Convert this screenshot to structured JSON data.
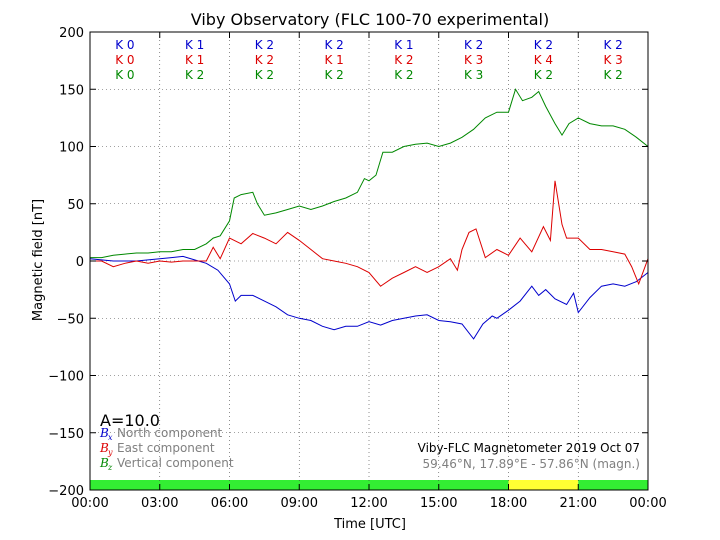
{
  "chart_data": {
    "type": "line",
    "title": "Viby Observatory (FLC 100-70 experimental)",
    "xlabel": "Time [UTC]",
    "ylabel": "Magnetic field [nT]",
    "ylim": [
      -200,
      200
    ],
    "xlim_hours": [
      0,
      24
    ],
    "x_tick_labels": [
      "00:00",
      "03:00",
      "06:00",
      "09:00",
      "12:00",
      "15:00",
      "18:00",
      "21:00",
      "00:00"
    ],
    "y_ticks": [
      -200,
      -150,
      -100,
      -50,
      0,
      50,
      100,
      150,
      200
    ],
    "y_tick_labels": [
      "−200",
      "−150",
      "−100",
      "−50",
      "0",
      "50",
      "100",
      "150",
      "200"
    ],
    "grid": true,
    "k_index_rows": [
      {
        "color": "#0000cc",
        "labels": [
          "K 0",
          "K 1",
          "K 2",
          "K 2",
          "K 1",
          "K 2",
          "K 2",
          "K 2"
        ]
      },
      {
        "color": "#dd0000",
        "labels": [
          "K 0",
          "K 1",
          "K 2",
          "K 1",
          "K 2",
          "K 3",
          "K 4",
          "K 3"
        ]
      },
      {
        "color": "#008800",
        "labels": [
          "K 0",
          "K 2",
          "K 2",
          "K 2",
          "K 2",
          "K 3",
          "K 2",
          "K 2"
        ]
      }
    ],
    "activity_bar": [
      {
        "from_hour": 0,
        "to_hour": 18,
        "color": "#33ee33"
      },
      {
        "from_hour": 18,
        "to_hour": 21,
        "color": "#ffff33"
      },
      {
        "from_hour": 21,
        "to_hour": 24,
        "color": "#33ee33"
      }
    ],
    "series": [
      {
        "key": "bx",
        "color": "#0000cc",
        "x": [
          0,
          0.5,
          1,
          1.5,
          2,
          2.5,
          3,
          3.5,
          4,
          4.5,
          5,
          5.5,
          6,
          6.25,
          6.5,
          7,
          7.5,
          8,
          8.5,
          9,
          9.5,
          10,
          10.5,
          11,
          11.5,
          12,
          12.5,
          13,
          13.5,
          14,
          14.5,
          15,
          15.5,
          16,
          16.5,
          16.9,
          17.3,
          17.5,
          18,
          18.5,
          19,
          19.3,
          19.6,
          20,
          20.5,
          20.8,
          21,
          21.5,
          22,
          22.5,
          23,
          23.5,
          24
        ],
        "y": [
          2,
          1,
          0,
          0,
          0,
          1,
          2,
          3,
          4,
          1,
          -2,
          -8,
          -20,
          -35,
          -30,
          -30,
          -35,
          -40,
          -47,
          -50,
          -52,
          -57,
          -60,
          -57,
          -57,
          -53,
          -56,
          -52,
          -50,
          -48,
          -47,
          -52,
          -53,
          -55,
          -68,
          -55,
          -48,
          -50,
          -43,
          -35,
          -22,
          -30,
          -25,
          -33,
          -38,
          -28,
          -45,
          -32,
          -22,
          -20,
          -22,
          -18,
          -10
        ]
      },
      {
        "key": "by",
        "color": "#dd0000",
        "x": [
          0,
          0.5,
          1,
          1.5,
          2,
          2.5,
          3,
          3.5,
          4,
          4.5,
          5,
          5.3,
          5.6,
          6,
          6.5,
          7,
          7.5,
          8,
          8.5,
          9,
          9.5,
          10,
          10.5,
          11,
          11.5,
          12,
          12.5,
          13,
          13.5,
          14,
          14.5,
          15,
          15.5,
          15.8,
          16,
          16.3,
          16.6,
          17,
          17.5,
          18,
          18.5,
          19,
          19.5,
          19.8,
          20,
          20.3,
          20.5,
          21,
          21.5,
          22,
          22.5,
          23,
          23.3,
          23.6,
          24
        ],
        "y": [
          0,
          0,
          -5,
          -2,
          0,
          -2,
          0,
          -1,
          0,
          0,
          0,
          12,
          2,
          20,
          15,
          24,
          20,
          15,
          25,
          18,
          10,
          2,
          0,
          -2,
          -5,
          -10,
          -22,
          -15,
          -10,
          -5,
          -10,
          -5,
          2,
          -8,
          10,
          25,
          28,
          3,
          10,
          5,
          20,
          8,
          30,
          18,
          70,
          32,
          20,
          20,
          10,
          10,
          8,
          6,
          -5,
          -20,
          2
        ]
      },
      {
        "key": "bz",
        "color": "#008800",
        "x": [
          0,
          0.5,
          1,
          1.5,
          2,
          2.5,
          3,
          3.5,
          4,
          4.5,
          5,
          5.3,
          5.6,
          6,
          6.2,
          6.5,
          7,
          7.2,
          7.5,
          8,
          8.5,
          9,
          9.5,
          10,
          10.5,
          11,
          11.5,
          11.8,
          12,
          12.3,
          12.6,
          13,
          13.5,
          14,
          14.5,
          15,
          15.5,
          16,
          16.5,
          17,
          17.5,
          18,
          18.3,
          18.6,
          19,
          19.3,
          19.6,
          20,
          20.3,
          20.6,
          21,
          21.5,
          22,
          22.5,
          23,
          23.5,
          24
        ],
        "y": [
          3,
          3,
          5,
          6,
          7,
          7,
          8,
          8,
          10,
          10,
          15,
          20,
          22,
          35,
          55,
          58,
          60,
          50,
          40,
          42,
          45,
          48,
          45,
          48,
          52,
          55,
          60,
          72,
          70,
          75,
          95,
          95,
          100,
          102,
          103,
          100,
          103,
          108,
          115,
          125,
          130,
          130,
          150,
          140,
          143,
          148,
          135,
          120,
          110,
          120,
          125,
          120,
          118,
          118,
          115,
          108,
          100
        ]
      }
    ],
    "legend": [
      {
        "symbol": "B",
        "subscript": "x",
        "text": "North component",
        "color": "#0000cc"
      },
      {
        "symbol": "B",
        "subscript": "y",
        "text": "East component",
        "color": "#dd0000"
      },
      {
        "symbol": "B",
        "subscript": "z",
        "text": "Vertical component",
        "color": "#008800"
      }
    ],
    "annotation_a": "A=10.0",
    "footer_line1": "Viby-FLC Magnetometer 2019 Oct 07",
    "footer_line2": "59.46°N, 17.89°E - 57.86°N (magn.)"
  }
}
